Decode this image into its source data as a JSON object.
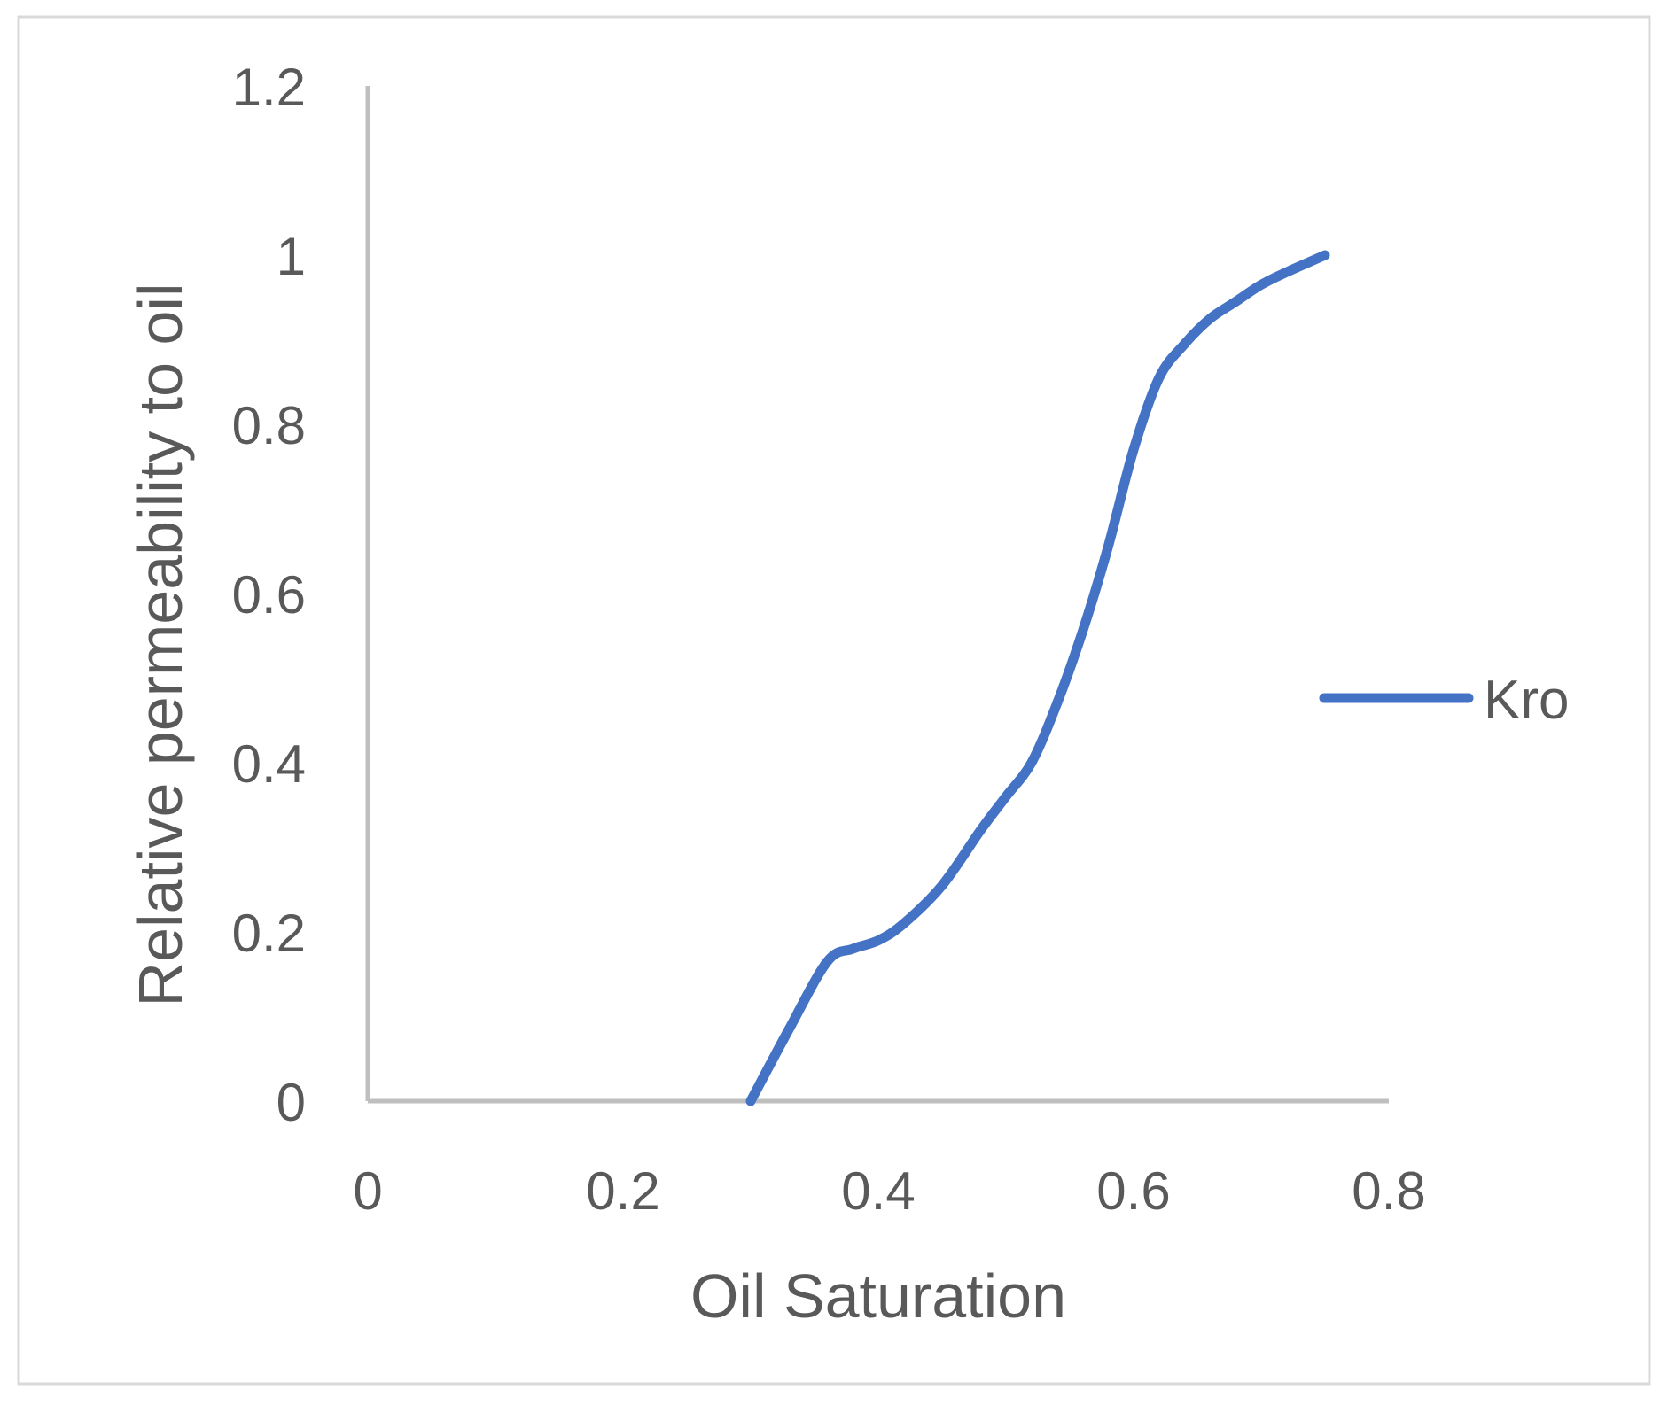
{
  "chart_data": {
    "type": "line",
    "title": "",
    "xlabel": "Oil Saturation",
    "ylabel": "Relative permeability to  oil",
    "xlim": [
      0,
      0.8
    ],
    "ylim": [
      0,
      1.2
    ],
    "xticks": [
      "0",
      "0.2",
      "0.4",
      "0.6",
      "0.8"
    ],
    "yticks": [
      "0",
      "0.2",
      "0.4",
      "0.6",
      "0.8",
      "1",
      "1.2"
    ],
    "grid": false,
    "legend_position": "right",
    "series": [
      {
        "name": "Kro",
        "color": "#4472C4",
        "smooth": true,
        "x": [
          0.3,
          0.33,
          0.36,
          0.38,
          0.4,
          0.42,
          0.45,
          0.48,
          0.5,
          0.52,
          0.54,
          0.56,
          0.58,
          0.6,
          0.62,
          0.64,
          0.66,
          0.68,
          0.7,
          0.72,
          0.75
        ],
        "y": [
          0,
          0.085,
          0.165,
          0.18,
          0.19,
          0.21,
          0.255,
          0.32,
          0.36,
          0.4,
          0.47,
          0.555,
          0.655,
          0.77,
          0.855,
          0.895,
          0.925,
          0.945,
          0.965,
          0.98,
          1.0
        ]
      }
    ]
  }
}
